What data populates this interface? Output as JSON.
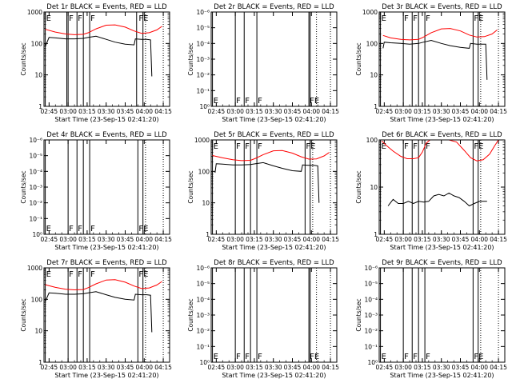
{
  "figure": {
    "xlabel": "Start Time (23-Sep-15 02:41:20)",
    "ylabel": "Counts/sec",
    "x_ticks": [
      "02:45",
      "03:00",
      "03:15",
      "03:30",
      "03:45",
      "04:00",
      "04:15"
    ],
    "colors": {
      "events": "#000000",
      "lld": "#ff0000",
      "axes": "#000000",
      "background": "#ffffff"
    }
  },
  "chart_data": [
    {
      "type": "line",
      "title": "Det 1r BLACK = Events, RED = LLD",
      "xlabel": "Start Time (23-Sep-15 02:41:20)",
      "ylabel": "Counts/sec",
      "y_scale": "log",
      "ylim": [
        1,
        1000
      ],
      "y_ticks": [
        "1",
        "10",
        "100",
        "1000"
      ],
      "vlines_solid": [
        "02:42",
        "02:59",
        "03:00",
        "03:07",
        "03:12",
        "03:17",
        "03:54",
        "03:59"
      ],
      "vlines_dotted": [
        "04:01",
        "04:15"
      ],
      "markers": [
        {
          "label": "E",
          "x": "02:42"
        },
        {
          "label": "F",
          "x": "03:00"
        },
        {
          "label": "F",
          "x": "03:07"
        },
        {
          "label": "F",
          "x": "03:17"
        },
        {
          "label": "FE",
          "x": "03:55"
        }
      ],
      "marker_row": "top",
      "series": [
        {
          "color": "#ff0000",
          "x": [
            "02:42",
            "02:50",
            "02:58",
            "03:05",
            "03:12",
            "03:16",
            "03:22",
            "03:30",
            "03:37",
            "03:45",
            "03:52",
            "03:58",
            "04:04",
            "04:10",
            "04:14"
          ],
          "y": [
            280,
            230,
            200,
            190,
            195,
            220,
            290,
            380,
            390,
            330,
            250,
            210,
            220,
            270,
            350
          ]
        },
        {
          "color": "#000000",
          "x": [
            "02:42",
            "02:45",
            "02:50",
            "02:58",
            "03:05",
            "03:12",
            "03:16",
            "03:22",
            "03:30",
            "03:37",
            "03:45",
            "03:52",
            "03:53",
            "03:58",
            "04:02",
            "04:05",
            "04:06"
          ],
          "y": [
            80,
            155,
            150,
            140,
            140,
            145,
            155,
            170,
            135,
            110,
            95,
            90,
            140,
            135,
            135,
            130,
            9
          ]
        }
      ]
    },
    {
      "type": "line",
      "title": "Det 2r BLACK = Events, RED = LLD",
      "xlabel": "Start Time (23-Sep-15 02:41:20)",
      "ylabel": "Counts/sec",
      "y_scale": "log",
      "ylim": [
        0.9,
        1.1
      ],
      "y_ticks": [
        "10⁰",
        "10⁻¹",
        "10⁻²",
        "10⁻³",
        "10⁻⁴",
        "10⁻⁵",
        "10⁻⁶"
      ],
      "vlines_solid": [
        "02:42",
        "03:00",
        "03:07",
        "03:17",
        "03:58",
        "03:59"
      ],
      "vlines_dotted": [
        "04:04",
        "04:15"
      ],
      "markers": [
        {
          "label": "E",
          "x": "02:42"
        },
        {
          "label": "F",
          "x": "03:00"
        },
        {
          "label": "F",
          "x": "03:07"
        },
        {
          "label": "F",
          "x": "03:17"
        },
        {
          "label": "FE",
          "x": "03:58"
        }
      ],
      "marker_row": "bottom",
      "series": []
    },
    {
      "type": "line",
      "title": "Det 3r BLACK = Events, RED = LLD",
      "xlabel": "Start Time (23-Sep-15 02:41:20)",
      "ylabel": "Counts/sec",
      "y_scale": "log",
      "ylim": [
        1,
        1000
      ],
      "y_ticks": [
        "1",
        "10",
        "100",
        "1000"
      ],
      "vlines_solid": [
        "02:42",
        "03:00",
        "03:07",
        "03:12",
        "03:17",
        "03:55",
        "03:59"
      ],
      "vlines_dotted": [
        "04:01",
        "04:15"
      ],
      "markers": [
        {
          "label": "E",
          "x": "02:42"
        },
        {
          "label": "F",
          "x": "03:00"
        },
        {
          "label": "F",
          "x": "03:07"
        },
        {
          "label": "F",
          "x": "03:17"
        },
        {
          "label": "FE",
          "x": "03:55"
        }
      ],
      "marker_row": "top",
      "series": [
        {
          "color": "#ff0000",
          "x": [
            "02:44",
            "02:50",
            "02:58",
            "03:05",
            "03:12",
            "03:16",
            "03:22",
            "03:30",
            "03:37",
            "03:45",
            "03:52",
            "03:58",
            "04:04",
            "04:10",
            "04:14"
          ],
          "y": [
            180,
            150,
            135,
            130,
            135,
            160,
            220,
            290,
            300,
            250,
            185,
            160,
            165,
            200,
            270
          ]
        },
        {
          "color": "#000000",
          "x": [
            "02:44",
            "02:45",
            "02:50",
            "02:58",
            "03:05",
            "03:12",
            "03:16",
            "03:22",
            "03:30",
            "03:37",
            "03:45",
            "03:52",
            "03:53",
            "03:58",
            "04:02",
            "04:05",
            "04:06"
          ],
          "y": [
            70,
            110,
            105,
            100,
            95,
            100,
            110,
            125,
            100,
            85,
            75,
            70,
            100,
            95,
            95,
            95,
            7
          ]
        }
      ]
    },
    {
      "type": "line",
      "title": "Det 4r BLACK = Events, RED = LLD",
      "xlabel": "Start Time (23-Sep-15 02:41:20)",
      "ylabel": "Counts/sec",
      "y_scale": "log",
      "ylim": [
        0.9,
        1.1
      ],
      "y_ticks": [
        "10⁰",
        "10⁻¹",
        "10⁻²",
        "10⁻³",
        "10⁻⁴",
        "10⁻⁵",
        "10⁻⁶"
      ],
      "vlines_solid": [
        "02:42",
        "03:00",
        "03:07",
        "03:12",
        "03:17",
        "03:55",
        "03:59"
      ],
      "vlines_dotted": [
        "04:01",
        "04:15"
      ],
      "markers": [
        {
          "label": "E",
          "x": "02:42"
        },
        {
          "label": "F",
          "x": "03:00"
        },
        {
          "label": "F",
          "x": "03:07"
        },
        {
          "label": "F",
          "x": "03:17"
        },
        {
          "label": "FE",
          "x": "03:55"
        }
      ],
      "marker_row": "bottom",
      "series": []
    },
    {
      "type": "line",
      "title": "Det 5r BLACK = Events, RED = LLD",
      "xlabel": "Start Time (23-Sep-15 02:41:20)",
      "ylabel": "Counts/sec",
      "y_scale": "log",
      "ylim": [
        1,
        1000
      ],
      "y_ticks": [
        "1",
        "10",
        "100",
        "1000"
      ],
      "vlines_solid": [
        "02:42",
        "03:00",
        "03:07",
        "03:12",
        "03:17",
        "03:55",
        "03:59"
      ],
      "vlines_dotted": [
        "04:01",
        "04:15"
      ],
      "markers": [
        {
          "label": "E",
          "x": "02:42"
        },
        {
          "label": "F",
          "x": "03:00"
        },
        {
          "label": "F",
          "x": "03:07"
        },
        {
          "label": "F",
          "x": "03:17"
        },
        {
          "label": "FE",
          "x": "03:55"
        }
      ],
      "marker_row": "top",
      "series": [
        {
          "color": "#ff0000",
          "x": [
            "02:42",
            "02:50",
            "02:58",
            "03:05",
            "03:12",
            "03:16",
            "03:22",
            "03:30",
            "03:37",
            "03:45",
            "03:52",
            "03:58",
            "04:04",
            "04:10",
            "04:14"
          ],
          "y": [
            320,
            270,
            235,
            220,
            225,
            260,
            340,
            450,
            460,
            380,
            290,
            245,
            250,
            310,
            400
          ]
        },
        {
          "color": "#000000",
          "x": [
            "02:44",
            "02:45",
            "02:50",
            "02:58",
            "03:05",
            "03:12",
            "03:16",
            "03:22",
            "03:30",
            "03:37",
            "03:45",
            "03:52",
            "03:53",
            "03:58",
            "04:02",
            "04:05",
            "04:06"
          ],
          "y": [
            90,
            175,
            170,
            160,
            160,
            165,
            175,
            190,
            150,
            125,
            105,
            100,
            160,
            155,
            155,
            150,
            10
          ]
        }
      ]
    },
    {
      "type": "line",
      "title": "Det 6r BLACK = Events, RED = LLD",
      "xlabel": "Start Time (23-Sep-15 02:41:20)",
      "ylabel": "Counts/sec",
      "y_scale": "log",
      "ylim": [
        1,
        100
      ],
      "y_ticks": [
        "1",
        "10",
        "100"
      ],
      "vlines_solid": [
        "02:42",
        "03:00",
        "03:07",
        "03:12",
        "03:17",
        "03:55",
        "03:59"
      ],
      "vlines_dotted": [
        "04:01",
        "04:15"
      ],
      "markers": [
        {
          "label": "E",
          "x": "02:42"
        },
        {
          "label": "F",
          "x": "03:00"
        },
        {
          "label": "F",
          "x": "03:07"
        },
        {
          "label": "F",
          "x": "03:17"
        },
        {
          "label": "FE",
          "x": "03:55"
        }
      ],
      "marker_row": "top",
      "series": [
        {
          "color": "#ff0000",
          "x": [
            "02:43",
            "02:47",
            "02:52",
            "02:58",
            "03:03",
            "03:08",
            "03:12",
            "03:15",
            "03:18",
            "03:21",
            "03:25",
            "03:30",
            "03:36",
            "03:42",
            "03:48",
            "03:53",
            "03:58",
            "04:03",
            "04:08",
            "04:12",
            "04:15"
          ],
          "y": [
            95,
            75,
            58,
            45,
            40,
            40,
            42,
            55,
            85,
            100,
            100,
            100,
            100,
            90,
            60,
            42,
            36,
            38,
            50,
            75,
            100
          ]
        },
        {
          "color": "#000000",
          "x": [
            "02:48",
            "02:52",
            "02:56",
            "03:00",
            "03:04",
            "03:08",
            "03:12",
            "03:16",
            "03:20",
            "03:24",
            "03:28",
            "03:32",
            "03:36",
            "03:40",
            "03:44",
            "03:48",
            "03:52",
            "03:56",
            "04:00",
            "04:04",
            "04:06"
          ],
          "y": [
            4,
            5.5,
            4.5,
            4.5,
            5,
            4.5,
            5,
            4.8,
            5,
            6.5,
            7,
            6.5,
            7.5,
            6.5,
            6,
            5,
            4,
            4.5,
            5,
            5,
            5
          ]
        }
      ]
    },
    {
      "type": "line",
      "title": "Det 7r BLACK = Events, RED = LLD",
      "xlabel": "Start Time (23-Sep-15 02:41:20)",
      "ylabel": "Counts/sec",
      "y_scale": "log",
      "ylim": [
        1,
        1000
      ],
      "y_ticks": [
        "1",
        "10",
        "100",
        "1000"
      ],
      "vlines_solid": [
        "02:42",
        "03:00",
        "03:07",
        "03:12",
        "03:17",
        "03:55",
        "03:59"
      ],
      "vlines_dotted": [
        "04:01",
        "04:15"
      ],
      "markers": [
        {
          "label": "E",
          "x": "02:42"
        },
        {
          "label": "F",
          "x": "03:00"
        },
        {
          "label": "F",
          "x": "03:07"
        },
        {
          "label": "F",
          "x": "03:17"
        },
        {
          "label": "FE",
          "x": "03:55"
        }
      ],
      "marker_row": "top",
      "series": [
        {
          "color": "#ff0000",
          "x": [
            "02:42",
            "02:50",
            "02:58",
            "03:05",
            "03:12",
            "03:16",
            "03:22",
            "03:30",
            "03:37",
            "03:45",
            "03:52",
            "03:58",
            "04:04",
            "04:10",
            "04:14"
          ],
          "y": [
            290,
            240,
            210,
            200,
            205,
            235,
            310,
            410,
            420,
            350,
            265,
            220,
            230,
            285,
            370
          ]
        },
        {
          "color": "#000000",
          "x": [
            "02:42",
            "02:45",
            "02:50",
            "02:58",
            "03:05",
            "03:12",
            "03:16",
            "03:22",
            "03:30",
            "03:37",
            "03:45",
            "03:52",
            "03:53",
            "03:58",
            "04:02",
            "04:05",
            "04:06"
          ],
          "y": [
            85,
            160,
            155,
            145,
            145,
            150,
            160,
            175,
            140,
            115,
            100,
            95,
            145,
            140,
            140,
            135,
            9
          ]
        }
      ]
    },
    {
      "type": "line",
      "title": "Det 8r BLACK = Events, RED = LLD",
      "xlabel": "Start Time (23-Sep-15 02:41:20)",
      "ylabel": "Counts/sec",
      "y_scale": "log",
      "ylim": [
        0.9,
        1.1
      ],
      "y_ticks": [
        "10⁰",
        "10⁻¹",
        "10⁻²",
        "10⁻³",
        "10⁻⁴",
        "10⁻⁵",
        "10⁻⁶"
      ],
      "vlines_solid": [
        "02:42",
        "03:00",
        "03:07",
        "03:12",
        "03:17",
        "03:58",
        "03:59"
      ],
      "vlines_dotted": [
        "04:04",
        "04:15"
      ],
      "markers": [
        {
          "label": "E",
          "x": "02:42"
        },
        {
          "label": "F",
          "x": "03:00"
        },
        {
          "label": "F",
          "x": "03:07"
        },
        {
          "label": "F",
          "x": "03:17"
        },
        {
          "label": "FE",
          "x": "03:58"
        }
      ],
      "marker_row": "bottom",
      "series": []
    },
    {
      "type": "line",
      "title": "Det 9r BLACK = Events, RED = LLD",
      "xlabel": "Start Time (23-Sep-15 02:41:20)",
      "ylabel": "Counts/sec",
      "y_scale": "log",
      "ylim": [
        0.9,
        1.1
      ],
      "y_ticks": [
        "10⁰",
        "10⁻¹",
        "10⁻²",
        "10⁻³",
        "10⁻⁴",
        "10⁻⁵",
        "10⁻⁶"
      ],
      "vlines_solid": [
        "02:42",
        "03:00",
        "03:07",
        "03:12",
        "03:17",
        "03:55",
        "03:59"
      ],
      "vlines_dotted": [
        "04:01",
        "04:15"
      ],
      "markers": [
        {
          "label": "E",
          "x": "02:42"
        },
        {
          "label": "F",
          "x": "03:00"
        },
        {
          "label": "F",
          "x": "03:07"
        },
        {
          "label": "F",
          "x": "03:17"
        },
        {
          "label": "FE",
          "x": "03:55"
        }
      ],
      "marker_row": "bottom",
      "series": []
    }
  ]
}
